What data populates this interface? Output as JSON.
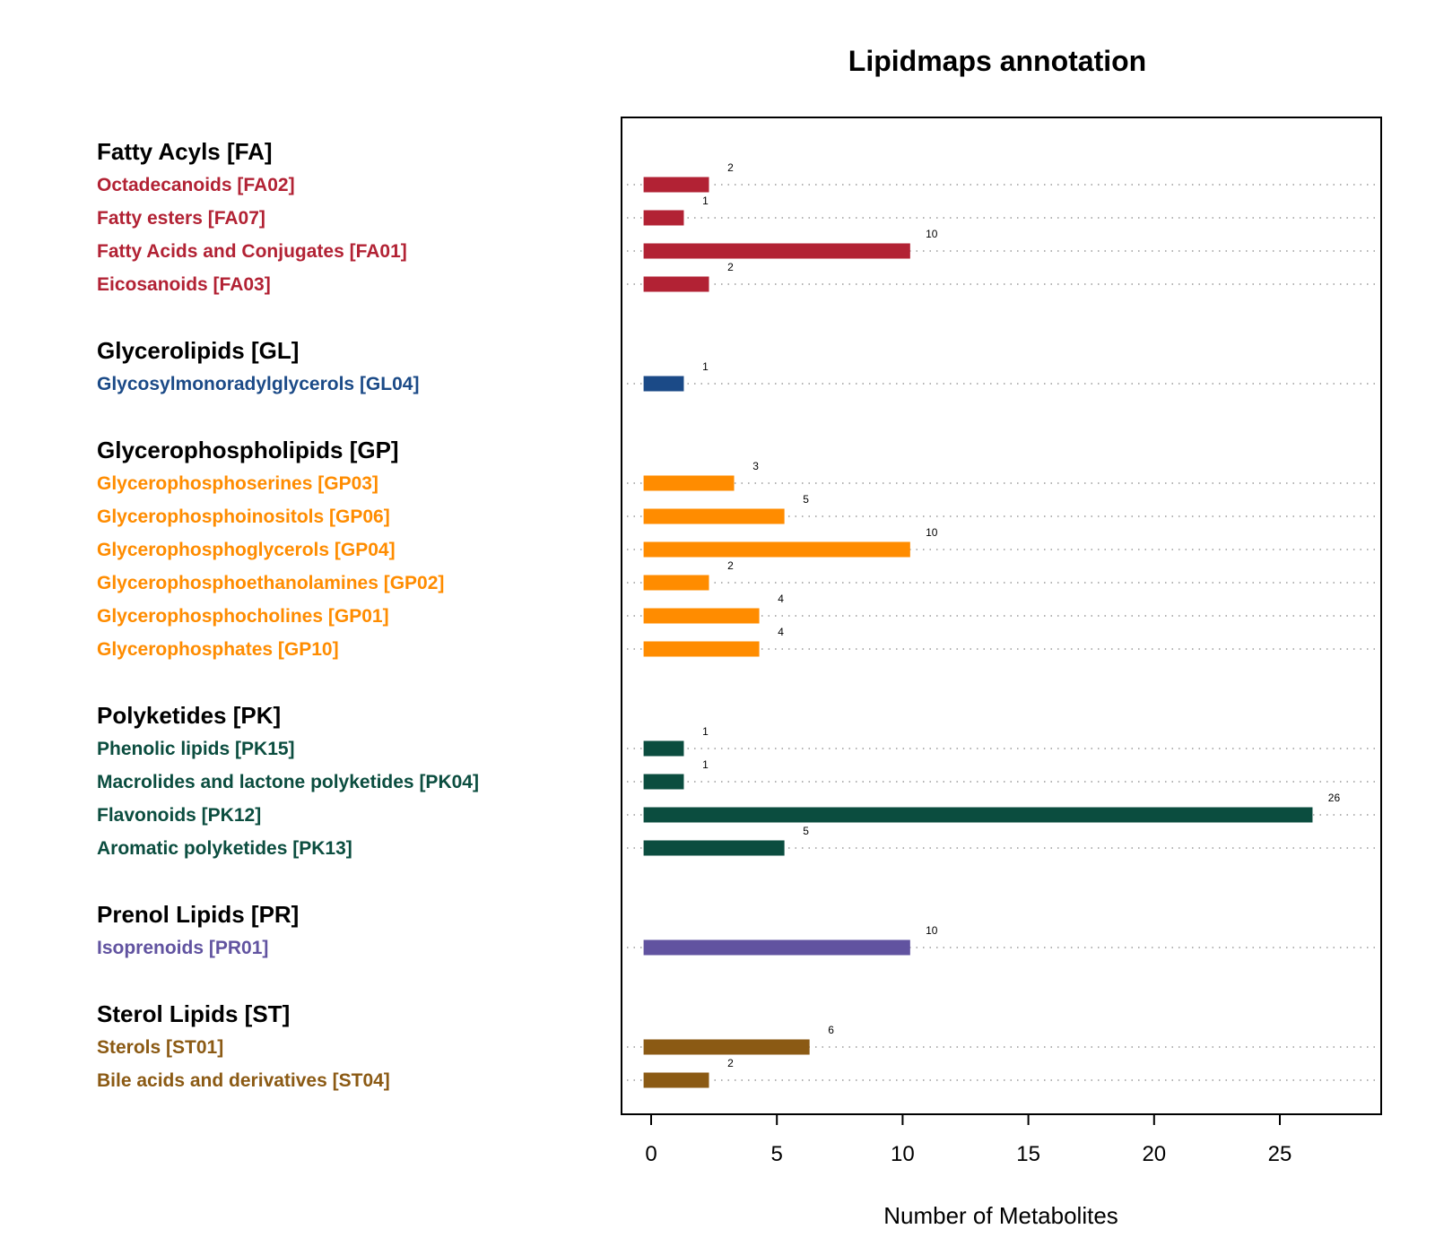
{
  "chart_data": {
    "type": "bar",
    "orientation": "horizontal",
    "title": "Lipidmaps annotation",
    "xlabel": "Number of Metabolites",
    "xlim": [
      -1,
      29
    ],
    "xticks": [
      0,
      5,
      10,
      15,
      20,
      25
    ],
    "grid": "dotted row guides",
    "groups": [
      {
        "label": "Fatty Acyls [FA]",
        "color": "#b22234",
        "items": [
          {
            "label": "Octadecanoids [FA02]",
            "value": 2
          },
          {
            "label": "Fatty esters [FA07]",
            "value": 1
          },
          {
            "label": "Fatty Acids and Conjugates [FA01]",
            "value": 10
          },
          {
            "label": "Eicosanoids [FA03]",
            "value": 2
          }
        ]
      },
      {
        "label": "Glycerolipids [GL]",
        "color": "#1b4a87",
        "items": [
          {
            "label": "Glycosylmonoradylglycerols [GL04]",
            "value": 1
          }
        ]
      },
      {
        "label": "Glycerophospholipids [GP]",
        "color": "#ff8c00",
        "items": [
          {
            "label": "Glycerophosphoserines [GP03]",
            "value": 3
          },
          {
            "label": "Glycerophosphoinositols [GP06]",
            "value": 5
          },
          {
            "label": "Glycerophosphoglycerols [GP04]",
            "value": 10
          },
          {
            "label": "Glycerophosphoethanolamines [GP02]",
            "value": 2
          },
          {
            "label": "Glycerophosphocholines [GP01]",
            "value": 4
          },
          {
            "label": "Glycerophosphates [GP10]",
            "value": 4
          }
        ]
      },
      {
        "label": "Polyketides [PK]",
        "color": "#0b4d3f",
        "items": [
          {
            "label": "Phenolic lipids [PK15]",
            "value": 1
          },
          {
            "label": "Macrolides and lactone polyketides [PK04]",
            "value": 1
          },
          {
            "label": "Flavonoids [PK12]",
            "value": 26
          },
          {
            "label": "Aromatic polyketides [PK13]",
            "value": 5
          }
        ]
      },
      {
        "label": "Prenol Lipids [PR]",
        "color": "#6153a0",
        "items": [
          {
            "label": "Isoprenoids [PR01]",
            "value": 10
          }
        ]
      },
      {
        "label": "Sterol Lipids [ST]",
        "color": "#8b5a14",
        "items": [
          {
            "label": "Sterols [ST01]",
            "value": 6
          },
          {
            "label": "Bile acids and derivatives [ST04]",
            "value": 2
          }
        ]
      }
    ]
  }
}
